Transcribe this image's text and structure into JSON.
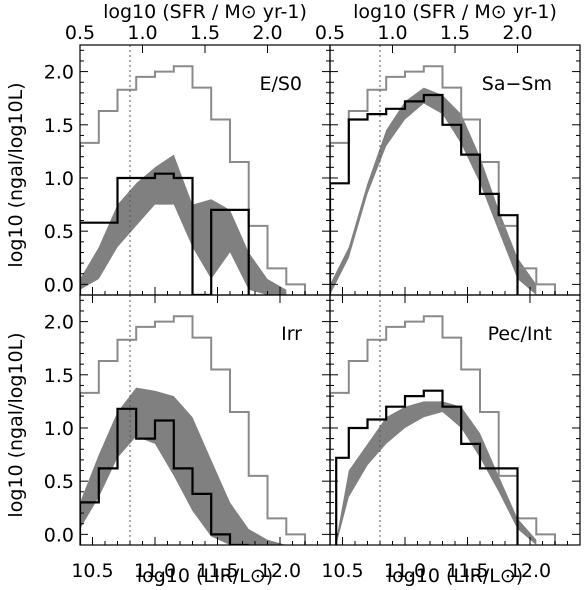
{
  "figure": {
    "x_axis_label": "log10 (LIR/L⊙)",
    "y_axis_label": "log10 (ngal/log10L)",
    "top_axis_label": "log10 (SFR / M⊙ yr-1)",
    "colors": {
      "band": "#808080",
      "all_galaxies": "#8a8a8a",
      "subsample": "#000000",
      "reference_line": "#555555"
    },
    "reference_line_x": 10.8
  },
  "chart_data": [
    {
      "type": "line",
      "panel": "E/S0",
      "xlim": [
        10.4,
        12.4
      ],
      "ylim": [
        -0.1,
        2.25
      ],
      "top_xlim": [
        0.5,
        2.5
      ],
      "top_ticks": [
        0.5,
        1.0,
        1.5,
        2.0
      ],
      "x_ticks": [
        10.5,
        11.0,
        11.5,
        12.0
      ],
      "y_ticks": [
        0.0,
        0.5,
        1.0,
        1.5,
        2.0
      ],
      "series": [
        {
          "role": "all_galaxies_step",
          "bin_edges": [
            10.4,
            10.55,
            10.7,
            10.85,
            11.0,
            11.15,
            11.3,
            11.45,
            11.6,
            11.75,
            11.9,
            12.05,
            12.2
          ],
          "values": [
            1.33,
            1.63,
            1.83,
            1.95,
            2.0,
            2.05,
            1.85,
            1.55,
            1.15,
            0.55,
            0.15,
            0.0
          ]
        },
        {
          "role": "subsample_step",
          "bin_edges": [
            10.4,
            10.55,
            10.7,
            10.85,
            11.0,
            11.15,
            11.3,
            11.45,
            11.6,
            11.75
          ],
          "values": [
            0.58,
            0.58,
            1.0,
            1.0,
            1.04,
            1.0,
            -0.1,
            0.7,
            0.7
          ]
        },
        {
          "role": "model_band",
          "x": [
            10.4,
            10.55,
            10.7,
            10.85,
            11.0,
            11.15,
            11.3,
            11.45,
            11.6,
            11.75,
            11.9,
            12.05
          ],
          "lower": [
            -0.05,
            0.05,
            0.35,
            0.55,
            0.75,
            0.75,
            0.35,
            0.05,
            0.3,
            -0.05,
            -0.1,
            -0.1
          ],
          "upper": [
            0.05,
            0.35,
            0.75,
            0.95,
            1.1,
            1.22,
            0.75,
            0.8,
            0.7,
            0.3,
            0.05,
            -0.05
          ]
        }
      ]
    },
    {
      "type": "line",
      "panel": "Sa−Sm",
      "xlim": [
        10.4,
        12.4
      ],
      "ylim": [
        -0.1,
        2.25
      ],
      "top_xlim": [
        0.5,
        2.5
      ],
      "top_ticks": [
        0.5,
        1.0,
        1.5,
        2.0
      ],
      "x_ticks": [
        10.5,
        11.0,
        11.5,
        12.0
      ],
      "y_ticks": [
        0.0,
        0.5,
        1.0,
        1.5,
        2.0
      ],
      "series": [
        {
          "role": "all_galaxies_step",
          "bin_edges": [
            10.4,
            10.55,
            10.7,
            10.85,
            11.0,
            11.15,
            11.3,
            11.45,
            11.6,
            11.75,
            11.9,
            12.05,
            12.2
          ],
          "values": [
            1.33,
            1.63,
            1.83,
            1.95,
            2.0,
            2.05,
            1.85,
            1.55,
            1.15,
            0.55,
            0.15,
            0.0
          ]
        },
        {
          "role": "subsample_step",
          "bin_edges": [
            10.4,
            10.55,
            10.7,
            10.85,
            11.0,
            11.15,
            11.3,
            11.45,
            11.6,
            11.75,
            11.9
          ],
          "values": [
            0.95,
            1.55,
            1.6,
            1.65,
            1.72,
            1.78,
            1.5,
            1.22,
            0.85,
            0.65
          ]
        },
        {
          "role": "model_band",
          "x": [
            10.4,
            10.55,
            10.7,
            10.85,
            11.0,
            11.15,
            11.3,
            11.45,
            11.6,
            11.75,
            11.9,
            12.05
          ],
          "lower": [
            -0.1,
            0.25,
            0.85,
            1.3,
            1.55,
            1.7,
            1.6,
            1.32,
            0.95,
            0.5,
            0.05,
            -0.1
          ],
          "upper": [
            0.0,
            0.35,
            0.95,
            1.45,
            1.72,
            1.85,
            1.78,
            1.6,
            1.2,
            0.7,
            0.25,
            0.0
          ]
        }
      ]
    },
    {
      "type": "line",
      "panel": "Irr",
      "xlim": [
        10.4,
        12.4
      ],
      "ylim": [
        -0.1,
        2.25
      ],
      "x_ticks": [
        10.5,
        11.0,
        11.5,
        12.0
      ],
      "x_tick_labels": [
        "10.5",
        "11.0",
        "11.5",
        "12.0"
      ],
      "y_ticks": [
        0.0,
        0.5,
        1.0,
        1.5,
        2.0
      ],
      "series": [
        {
          "role": "all_galaxies_step",
          "bin_edges": [
            10.4,
            10.55,
            10.7,
            10.85,
            11.0,
            11.15,
            11.3,
            11.45,
            11.6,
            11.75,
            11.9,
            12.05,
            12.2
          ],
          "values": [
            1.33,
            1.63,
            1.83,
            1.95,
            2.0,
            2.05,
            1.85,
            1.55,
            1.15,
            0.55,
            0.15,
            0.0
          ]
        },
        {
          "role": "subsample_step",
          "bin_edges": [
            10.4,
            10.55,
            10.7,
            10.85,
            11.0,
            11.15,
            11.3,
            11.45,
            11.6,
            11.75
          ],
          "values": [
            0.3,
            0.62,
            1.18,
            0.9,
            1.07,
            0.62,
            0.38,
            0.0,
            -0.1
          ]
        },
        {
          "role": "model_band",
          "x": [
            10.4,
            10.55,
            10.7,
            10.85,
            11.0,
            11.15,
            11.3,
            11.45,
            11.6,
            11.75,
            11.9,
            12.05
          ],
          "lower": [
            0.05,
            0.35,
            0.72,
            0.92,
            0.85,
            0.55,
            0.22,
            -0.02,
            -0.1,
            -0.1,
            -0.1,
            -0.1
          ],
          "upper": [
            0.3,
            0.75,
            1.15,
            1.38,
            1.35,
            1.3,
            1.1,
            0.7,
            0.3,
            0.05,
            -0.05,
            -0.1
          ]
        }
      ]
    },
    {
      "type": "line",
      "panel": "Pec/Int",
      "xlim": [
        10.4,
        12.4
      ],
      "ylim": [
        -0.1,
        2.25
      ],
      "x_ticks": [
        10.5,
        11.0,
        11.5,
        12.0
      ],
      "x_tick_labels": [
        "10.5",
        "11.0",
        "11.5",
        "12.0"
      ],
      "y_ticks": [
        0.0,
        0.5,
        1.0,
        1.5,
        2.0
      ],
      "series": [
        {
          "role": "all_galaxies_step",
          "bin_edges": [
            10.4,
            10.55,
            10.7,
            10.85,
            11.0,
            11.15,
            11.3,
            11.45,
            11.6,
            11.75,
            11.9,
            12.05,
            12.2
          ],
          "values": [
            1.33,
            1.63,
            1.83,
            1.95,
            2.0,
            2.05,
            1.85,
            1.55,
            1.15,
            0.55,
            0.15,
            0.0
          ]
        },
        {
          "role": "subsample_step",
          "bin_edges": [
            10.45,
            10.55,
            10.7,
            10.85,
            11.0,
            11.15,
            11.3,
            11.45,
            11.6,
            11.75,
            11.9
          ],
          "values": [
            0.72,
            1.0,
            1.08,
            1.2,
            1.3,
            1.35,
            1.2,
            0.85,
            0.62,
            0.62
          ]
        },
        {
          "role": "model_band",
          "x": [
            10.45,
            10.55,
            10.7,
            10.85,
            11.0,
            11.15,
            11.3,
            11.45,
            11.6,
            11.75,
            11.9,
            12.05
          ],
          "lower": [
            -0.1,
            0.35,
            0.65,
            0.85,
            1.0,
            1.1,
            1.15,
            1.0,
            0.72,
            0.4,
            0.05,
            -0.1
          ],
          "upper": [
            -0.05,
            0.6,
            0.85,
            1.1,
            1.2,
            1.25,
            1.25,
            1.2,
            0.95,
            0.55,
            0.15,
            -0.05
          ]
        }
      ]
    }
  ]
}
